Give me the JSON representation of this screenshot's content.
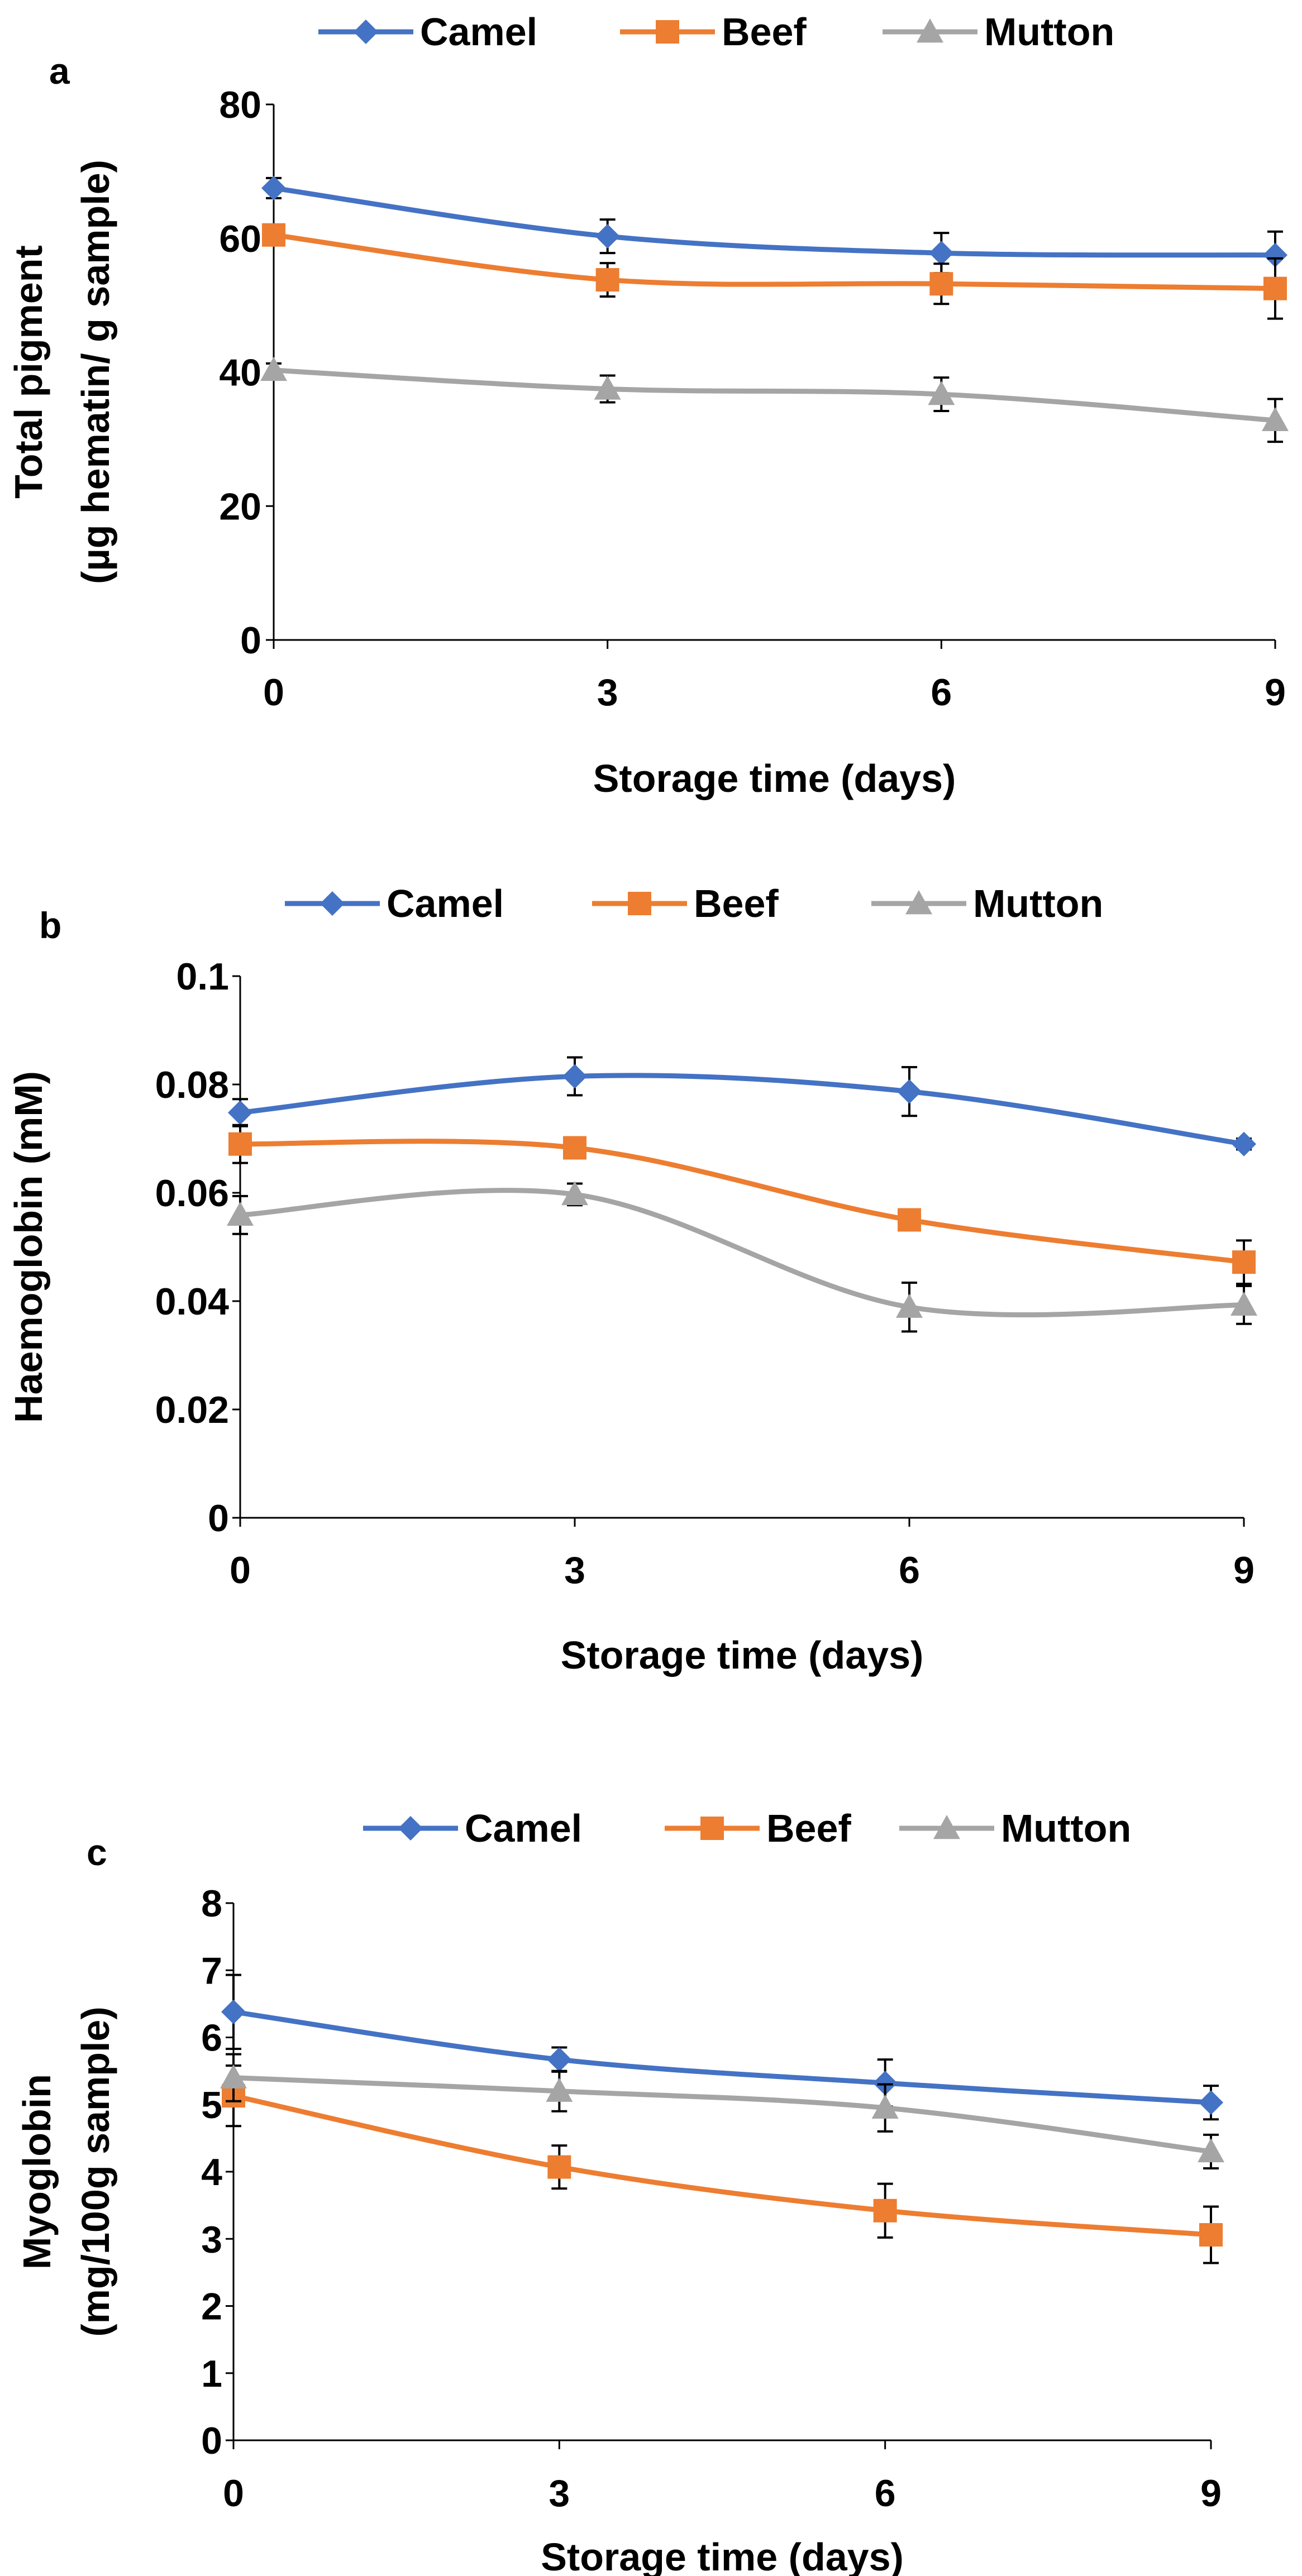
{
  "chart_data": [
    {
      "type": "line",
      "panel": "a",
      "x": [
        0,
        3,
        6,
        9
      ],
      "xlabel": "Storage time (days)",
      "ylabel": [
        "Total pigment",
        "(µg hematin/ g sample)"
      ],
      "ylim": [
        0,
        80
      ],
      "yticks": [
        "0",
        "20",
        "40",
        "60",
        "80"
      ],
      "xticks": [
        "0",
        "3",
        "6",
        "9"
      ],
      "grid": false,
      "legend_position": "top",
      "series": [
        {
          "name": "Camel",
          "marker": "diamond",
          "color": "#4472C4",
          "values": [
            67.5,
            60.3,
            57.8,
            57.5
          ],
          "errors": [
            1.5,
            2.5,
            3.0,
            3.5
          ]
        },
        {
          "name": "Beef",
          "marker": "square",
          "color": "#ED7D31",
          "values": [
            60.5,
            53.8,
            53.2,
            52.5
          ],
          "errors": [
            1.0,
            2.5,
            3.0,
            4.5
          ]
        },
        {
          "name": "Mutton",
          "marker": "triangle",
          "color": "#A5A5A5",
          "values": [
            40.3,
            37.5,
            36.7,
            32.8
          ],
          "errors": [
            1.0,
            2.0,
            2.5,
            3.2
          ]
        }
      ]
    },
    {
      "type": "line",
      "panel": "b",
      "x": [
        0,
        3,
        6,
        9
      ],
      "xlabel": "Storage time (days)",
      "ylabel": [
        "Haemoglobin (mM)"
      ],
      "ylim": [
        0,
        0.1
      ],
      "yticks": [
        "0",
        "0.02",
        "0.04",
        "0.06",
        "0.08",
        "0.1"
      ],
      "xticks": [
        "0",
        "3",
        "6",
        "9"
      ],
      "grid": false,
      "legend_position": "top",
      "series": [
        {
          "name": "Camel",
          "marker": "diamond",
          "color": "#4472C4",
          "values": [
            0.0748,
            0.0815,
            0.0787,
            0.069
          ],
          "errors": [
            0.0025,
            0.0035,
            0.0045,
            0.001
          ]
        },
        {
          "name": "Beef",
          "marker": "square",
          "color": "#ED7D31",
          "values": [
            0.069,
            0.0683,
            0.055,
            0.0472
          ],
          "errors": [
            0.0035,
            0.0015,
            0.0015,
            0.004
          ]
        },
        {
          "name": "Mutton",
          "marker": "triangle",
          "color": "#A5A5A5",
          "values": [
            0.0559,
            0.0597,
            0.0389,
            0.0393
          ],
          "errors": [
            0.0035,
            0.002,
            0.0045,
            0.0035
          ]
        }
      ]
    },
    {
      "type": "line",
      "panel": "c",
      "x": [
        0,
        3,
        6,
        9
      ],
      "xlabel": "Storage time (days)",
      "ylabel": [
        "Myoglobin",
        "(mg/100g sample)"
      ],
      "ylim": [
        0,
        8
      ],
      "yticks": [
        "0",
        "1",
        "2",
        "3",
        "4",
        "5",
        "6",
        "7",
        "8"
      ],
      "xticks": [
        "0",
        "3",
        "6",
        "9"
      ],
      "grid": false,
      "legend_position": "top",
      "series": [
        {
          "name": "Camel",
          "marker": "diamond",
          "color": "#4472C4",
          "values": [
            6.38,
            5.67,
            5.32,
            5.03
          ],
          "errors": [
            0.55,
            0.18,
            0.35,
            0.25
          ]
        },
        {
          "name": "Beef",
          "marker": "square",
          "color": "#ED7D31",
          "values": [
            5.13,
            4.07,
            3.42,
            3.06
          ],
          "errors": [
            0.45,
            0.32,
            0.4,
            0.42
          ]
        },
        {
          "name": "Mutton",
          "marker": "triangle",
          "color": "#A5A5A5",
          "values": [
            5.4,
            5.2,
            4.95,
            4.3
          ],
          "errors": [
            0.35,
            0.3,
            0.35,
            0.25
          ]
        }
      ]
    }
  ]
}
